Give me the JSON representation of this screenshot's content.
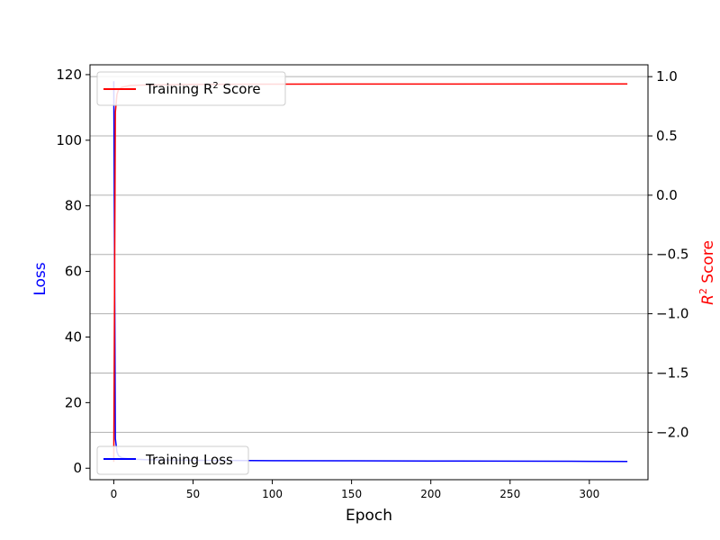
{
  "chart_data": {
    "type": "line",
    "title": "",
    "xlabel": "Epoch",
    "ylabel_left": "Loss",
    "ylabel_right_base": "R",
    "ylabel_right_sup": "2",
    "ylabel_right_suffix": " Score",
    "xlim": [
      -15,
      337
    ],
    "ylim_left": [
      -3.5,
      123
    ],
    "ylim_right": [
      -2.4,
      1.1
    ],
    "x_ticks": [
      0,
      50,
      100,
      150,
      200,
      250,
      300
    ],
    "x_tick_labels": [
      "0",
      "50",
      "100",
      "150",
      "200",
      "250",
      "300"
    ],
    "y_left_ticks": [
      0,
      20,
      40,
      60,
      80,
      100,
      120
    ],
    "y_left_tick_labels": [
      "0",
      "20",
      "40",
      "60",
      "80",
      "100",
      "120"
    ],
    "y_right_ticks": [
      1.0,
      0.5,
      0.0,
      -0.5,
      -1.0,
      -1.5,
      -2.0
    ],
    "y_right_tick_labels": [
      "1.0",
      "0.5",
      "0.0",
      "−0.5",
      "−1.0",
      "−1.5",
      "−2.0"
    ],
    "grid": "horizontal (right axis)",
    "series": [
      {
        "name": "Training Loss",
        "axis": "left",
        "color": "#0000ff",
        "points": [
          [
            0,
            118
          ],
          [
            1,
            9
          ],
          [
            2,
            5
          ],
          [
            3,
            3.8
          ],
          [
            5,
            3.2
          ],
          [
            10,
            2.8
          ],
          [
            20,
            2.6
          ],
          [
            50,
            2.4
          ],
          [
            100,
            2.3
          ],
          [
            150,
            2.25
          ],
          [
            200,
            2.2
          ],
          [
            250,
            2.15
          ],
          [
            300,
            2.1
          ],
          [
            324,
            2.05
          ]
        ]
      },
      {
        "name_base": "Training R",
        "name_sup": "2",
        "name_suffix": " Score",
        "axis": "right",
        "color": "#ff0000",
        "points": [
          [
            0,
            -2.25
          ],
          [
            1,
            0.7
          ],
          [
            2,
            0.85
          ],
          [
            3,
            0.89
          ],
          [
            5,
            0.91
          ],
          [
            10,
            0.925
          ],
          [
            20,
            0.93
          ],
          [
            50,
            0.935
          ],
          [
            100,
            0.937
          ],
          [
            200,
            0.938
          ],
          [
            300,
            0.939
          ],
          [
            324,
            0.939
          ]
        ]
      }
    ],
    "legend_top": "upper-left",
    "legend_bottom": "lower-left",
    "colors": {
      "left_label": "#0000ff",
      "right_label": "#ff0000",
      "grid": "#b0b0b0"
    }
  }
}
